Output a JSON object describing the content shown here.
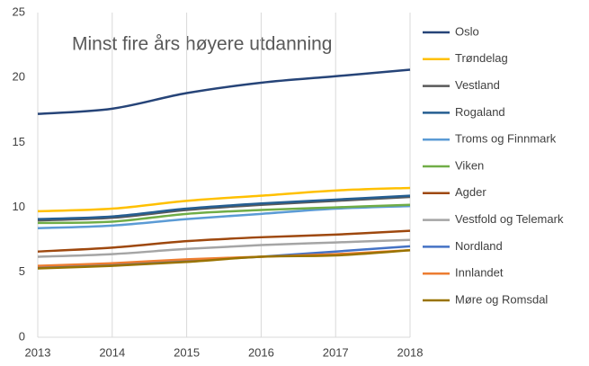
{
  "chart_data": {
    "type": "line",
    "title": "Minst fire års høyere utdanning",
    "x": [
      2013,
      2014,
      2015,
      2016,
      2017,
      2018
    ],
    "xlim": [
      2013,
      2018
    ],
    "xticks": [
      2013,
      2014,
      2015,
      2016,
      2017,
      2018
    ],
    "ylim": [
      0,
      25
    ],
    "yticks": [
      0,
      5,
      10,
      15,
      20,
      25
    ],
    "grid": "x",
    "legend": "right",
    "series": [
      {
        "name": "Oslo",
        "color": "#264478",
        "values": [
          17.2,
          17.6,
          18.8,
          19.6,
          20.1,
          20.6
        ]
      },
      {
        "name": "Trøndelag",
        "color": "#ffc000",
        "values": [
          9.7,
          9.9,
          10.5,
          10.9,
          11.3,
          11.5
        ]
      },
      {
        "name": "Vestland",
        "color": "#595959",
        "values": [
          9.0,
          9.2,
          9.8,
          10.2,
          10.5,
          10.8
        ]
      },
      {
        "name": "Rogaland",
        "color": "#255e91",
        "values": [
          9.1,
          9.3,
          9.9,
          10.3,
          10.6,
          10.9
        ]
      },
      {
        "name": "Troms og Finnmark",
        "color": "#5b9bd5",
        "values": [
          8.4,
          8.6,
          9.1,
          9.5,
          9.9,
          10.1
        ]
      },
      {
        "name": "Viken",
        "color": "#70ad47",
        "values": [
          8.8,
          8.9,
          9.5,
          9.8,
          10.0,
          10.2
        ]
      },
      {
        "name": "Agder",
        "color": "#9e480e",
        "values": [
          6.6,
          6.9,
          7.4,
          7.7,
          7.9,
          8.2
        ]
      },
      {
        "name": "Vestfold og Telemark",
        "color": "#a5a5a5",
        "values": [
          6.2,
          6.4,
          6.8,
          7.1,
          7.3,
          7.5
        ]
      },
      {
        "name": "Nordland",
        "color": "#4472c4",
        "values": [
          5.4,
          5.6,
          5.9,
          6.2,
          6.6,
          7.0
        ]
      },
      {
        "name": "Innlandet",
        "color": "#ed7d31",
        "values": [
          5.5,
          5.7,
          6.0,
          6.2,
          6.4,
          6.7
        ]
      },
      {
        "name": "Møre og Romsdal",
        "color": "#997300",
        "values": [
          5.3,
          5.5,
          5.8,
          6.2,
          6.3,
          6.7
        ]
      }
    ]
  }
}
